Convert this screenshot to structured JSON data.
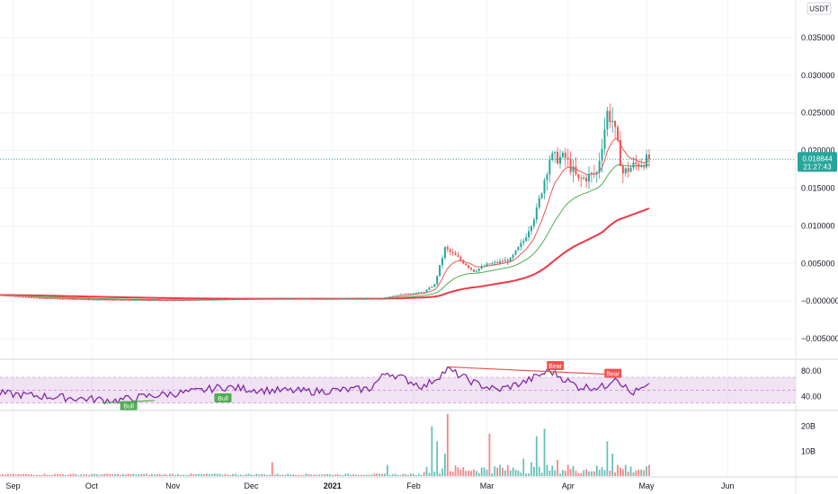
{
  "chart_data": [
    {
      "type": "candlestick",
      "currency": "USDT",
      "ylim": [
        -0.0075,
        0.04
      ],
      "y_ticks": [
        "0.035000",
        "0.030000",
        "0.025000",
        "0.020000",
        "0.015000",
        "0.010000",
        "0.005000",
        "−0.000000",
        "−0.005000"
      ],
      "y_tick_values": [
        0.035,
        0.03,
        0.025,
        0.02,
        0.015,
        0.01,
        0.005,
        0.0,
        -0.005
      ],
      "x_labels": [
        "Sep",
        "Oct",
        "Nov",
        "Dec",
        "2021",
        "Feb",
        "Mar",
        "Apr",
        "May",
        "Jun"
      ],
      "x_label_dates": [
        "2020-09-01",
        "2020-10-01",
        "2020-11-01",
        "2020-12-01",
        "2021-01-01",
        "2021-02-01",
        "2021-03-01",
        "2021-04-01",
        "2021-05-01",
        "2021-06-01"
      ],
      "x_start_date": "2020-08-27",
      "x_end_date": "2021-06-27",
      "last_price": "0.018844",
      "countdown": "21:27:43",
      "last_price_value": 0.018844,
      "colors": {
        "up": "#26a69a",
        "down": "#ef5350",
        "ema_fast": "#ef5350",
        "ema_mid": "#4caf50",
        "ema_slow": "#f23645"
      },
      "price_anchors": [
        [
          "2020-08-27",
          0.0008
        ],
        [
          "2020-09-10",
          0.0004
        ],
        [
          "2020-10-01",
          0.0002
        ],
        [
          "2020-11-01",
          0.0001
        ],
        [
          "2020-12-01",
          0.0003
        ],
        [
          "2021-01-01",
          0.0003
        ],
        [
          "2021-01-20",
          0.0004
        ],
        [
          "2021-01-27",
          0.0009
        ],
        [
          "2021-02-05",
          0.0012
        ],
        [
          "2021-02-09",
          0.0022
        ],
        [
          "2021-02-13",
          0.007
        ],
        [
          "2021-02-17",
          0.006
        ],
        [
          "2021-02-24",
          0.004
        ],
        [
          "2021-03-01",
          0.0048
        ],
        [
          "2021-03-10",
          0.0055
        ],
        [
          "2021-03-15",
          0.008
        ],
        [
          "2021-03-20",
          0.012
        ],
        [
          "2021-03-25",
          0.019
        ],
        [
          "2021-03-31",
          0.019
        ],
        [
          "2021-04-05",
          0.016
        ],
        [
          "2021-04-12",
          0.017
        ],
        [
          "2021-04-16",
          0.025
        ],
        [
          "2021-04-18",
          0.024
        ],
        [
          "2021-04-22",
          0.017
        ],
        [
          "2021-04-26",
          0.018
        ],
        [
          "2021-05-02",
          0.018844
        ]
      ]
    },
    {
      "type": "line",
      "indicator": "RSI",
      "ylim": [
        20,
        95
      ],
      "y_ticks": [
        "80.00",
        "40.00"
      ],
      "y_tick_values": [
        80,
        40
      ],
      "band": [
        30,
        70
      ],
      "line_color": "#7b1fa2",
      "band_color": "#e1bee7",
      "labels": [
        {
          "text": "Bull",
          "date": "2020-10-15",
          "value": 26,
          "color": "#4caf50"
        },
        {
          "text": "Bull",
          "date": "2020-11-20",
          "value": 38,
          "color": "#4caf50"
        },
        {
          "text": "Bear",
          "date": "2021-03-27",
          "value": 88,
          "color": "#ef5350"
        },
        {
          "text": "Bear",
          "date": "2021-04-18",
          "value": 76,
          "color": "#ef5350"
        }
      ],
      "anchors": [
        [
          "2020-08-27",
          45
        ],
        [
          "2020-09-15",
          40
        ],
        [
          "2020-10-10",
          34
        ],
        [
          "2020-10-25",
          42
        ],
        [
          "2020-11-10",
          48
        ],
        [
          "2020-11-20",
          55
        ],
        [
          "2020-12-05",
          50
        ],
        [
          "2020-12-25",
          48
        ],
        [
          "2021-01-15",
          52
        ],
        [
          "2021-01-22",
          78
        ],
        [
          "2021-02-05",
          55
        ],
        [
          "2021-02-14",
          82
        ],
        [
          "2021-02-25",
          60
        ],
        [
          "2021-03-05",
          50
        ],
        [
          "2021-03-15",
          62
        ],
        [
          "2021-03-25",
          80
        ],
        [
          "2021-04-05",
          55
        ],
        [
          "2021-04-15",
          55
        ],
        [
          "2021-04-19",
          72
        ],
        [
          "2021-04-25",
          45
        ],
        [
          "2021-05-02",
          55
        ]
      ]
    },
    {
      "type": "bar",
      "indicator": "Volume",
      "ylim": [
        0,
        26
      ],
      "unit": "B",
      "y_ticks": [
        "20B",
        "10B"
      ],
      "y_tick_values": [
        20,
        10
      ],
      "spikes": [
        [
          "2020-12-09",
          5.5
        ],
        [
          "2021-01-22",
          4.5
        ],
        [
          "2021-02-08",
          20
        ],
        [
          "2021-02-10",
          14
        ],
        [
          "2021-02-13",
          9
        ],
        [
          "2021-02-14",
          25
        ],
        [
          "2021-03-02",
          17
        ],
        [
          "2021-03-06",
          4.5
        ],
        [
          "2021-03-15",
          7
        ],
        [
          "2021-03-18",
          5.5
        ],
        [
          "2021-03-20",
          16
        ],
        [
          "2021-03-23",
          19
        ],
        [
          "2021-03-28",
          6.5
        ],
        [
          "2021-04-01",
          4.5
        ],
        [
          "2021-04-16",
          14
        ],
        [
          "2021-04-18",
          9
        ],
        [
          "2021-04-20",
          4.5
        ],
        [
          "2021-04-23",
          4.5
        ]
      ]
    }
  ]
}
